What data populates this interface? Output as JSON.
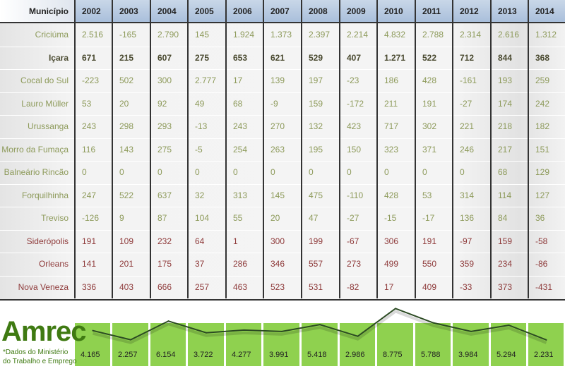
{
  "table": {
    "header_label": "Município",
    "years": [
      "2002",
      "2003",
      "2004",
      "2005",
      "2006",
      "2007",
      "2008",
      "2009",
      "2010",
      "2011",
      "2012",
      "2013",
      "2014"
    ],
    "rows": [
      {
        "name": "Criciúma",
        "style": "green",
        "values": [
          "2.516",
          "-165",
          "2.790",
          "145",
          "1.924",
          "1.373",
          "2.397",
          "2.214",
          "4.832",
          "2.788",
          "2.314",
          "2.616",
          "1.312"
        ]
      },
      {
        "name": "Içara",
        "style": "bold",
        "values": [
          "671",
          "215",
          "607",
          "275",
          "653",
          "621",
          "529",
          "407",
          "1.271",
          "522",
          "712",
          "844",
          "368"
        ]
      },
      {
        "name": "Cocal do Sul",
        "style": "green",
        "values": [
          "-223",
          "502",
          "300",
          "2.777",
          "17",
          "139",
          "197",
          "-23",
          "186",
          "428",
          "-161",
          "193",
          "259"
        ]
      },
      {
        "name": "Lauro Müller",
        "style": "green",
        "values": [
          "53",
          "20",
          "92",
          "49",
          "68",
          "-9",
          "159",
          "-172",
          "211",
          "191",
          "-27",
          "174",
          "242"
        ]
      },
      {
        "name": "Urussanga",
        "style": "green",
        "values": [
          "243",
          "298",
          "293",
          "-13",
          "243",
          "270",
          "132",
          "423",
          "717",
          "302",
          "221",
          "218",
          "182"
        ]
      },
      {
        "name": "Morro da Fumaça",
        "style": "green",
        "values": [
          "116",
          "143",
          "275",
          "-5",
          "254",
          "263",
          "195",
          "150",
          "323",
          "371",
          "246",
          "217",
          "151"
        ]
      },
      {
        "name": "Balneário Rincão",
        "style": "green",
        "values": [
          "0",
          "0",
          "0",
          "0",
          "0",
          "0",
          "0",
          "0",
          "0",
          "0",
          "0",
          "68",
          "129"
        ]
      },
      {
        "name": "Forquilhinha",
        "style": "green",
        "values": [
          "247",
          "522",
          "637",
          "32",
          "313",
          "145",
          "475",
          "-110",
          "428",
          "53",
          "314",
          "114",
          "127"
        ]
      },
      {
        "name": "Treviso",
        "style": "green",
        "values": [
          "-126",
          "9",
          "87",
          "104",
          "55",
          "20",
          "47",
          "-27",
          "-15",
          "-17",
          "136",
          "84",
          "36"
        ]
      },
      {
        "name": "Siderópolis",
        "style": "red",
        "values": [
          "191",
          "109",
          "232",
          "64",
          "1",
          "300",
          "199",
          "-67",
          "306",
          "191",
          "-97",
          "159",
          "-58"
        ]
      },
      {
        "name": "Orleans",
        "style": "red",
        "values": [
          "141",
          "201",
          "175",
          "37",
          "286",
          "346",
          "557",
          "273",
          "499",
          "550",
          "359",
          "234",
          "-86"
        ]
      },
      {
        "name": "Nova Veneza",
        "style": "red",
        "values": [
          "336",
          "403",
          "666",
          "257",
          "463",
          "523",
          "531",
          "-82",
          "17",
          "409",
          "-33",
          "373",
          "-431"
        ]
      }
    ]
  },
  "colors": {
    "green_text": "#8d9a5a",
    "red_text": "#8e3a3a",
    "box_green": "#8fd14f",
    "brand_green": "#3f7a12",
    "header_blue": "#b4c7df"
  },
  "brand": {
    "title": "Amrec",
    "note_line1": "*Dados do Ministério",
    "note_line2": "do Trabalho e Emprego"
  },
  "chart_data": {
    "type": "line",
    "categories": [
      "2002",
      "2003",
      "2004",
      "2005",
      "2006",
      "2007",
      "2008",
      "2009",
      "2010",
      "2011",
      "2012",
      "2013",
      "2014"
    ],
    "values": [
      4165,
      2257,
      6154,
      3722,
      4277,
      3991,
      5418,
      2986,
      8775,
      5788,
      3984,
      5294,
      2231
    ],
    "labels": [
      "4.165",
      "2.257",
      "6.154",
      "3.722",
      "4.277",
      "3.991",
      "5.418",
      "2.986",
      "8.775",
      "5.788",
      "3.984",
      "5.294",
      "2.231"
    ],
    "line_color": "#2b4a22"
  }
}
